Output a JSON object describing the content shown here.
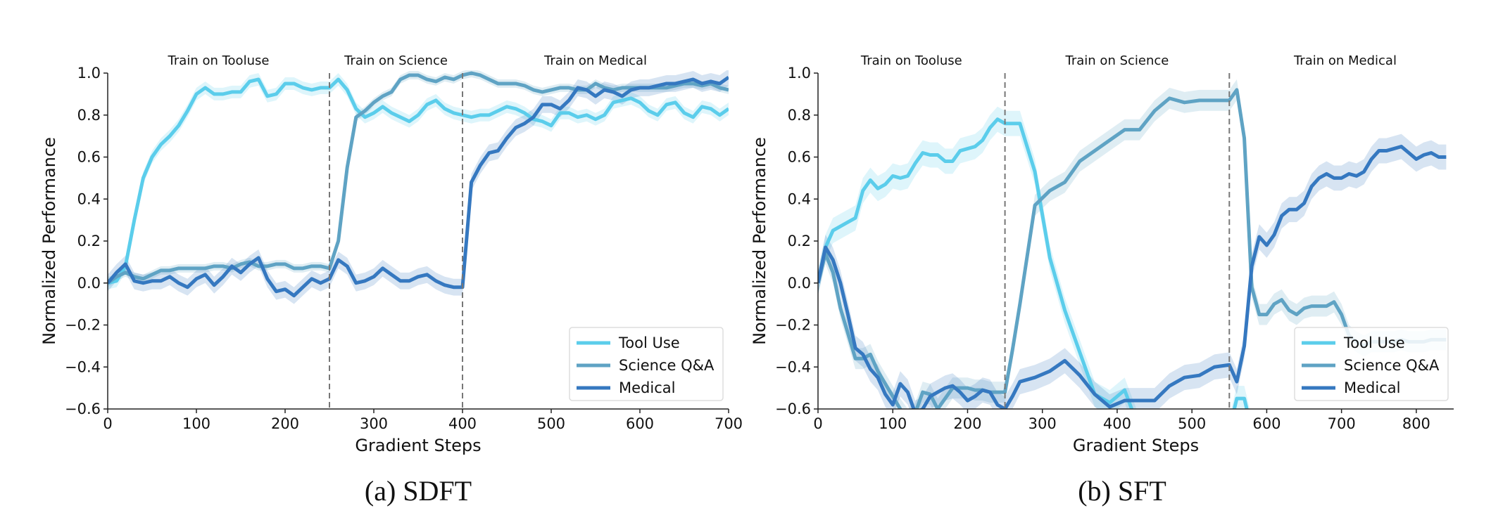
{
  "colors": {
    "tool_use": "#5BCDEB",
    "science": "#5FA3C4",
    "medical": "#3578C0",
    "divider": "#777777"
  },
  "chart_data": [
    {
      "type": "line",
      "caption": "(a) SDFT",
      "xlabel": "Gradient Steps",
      "ylabel": "Normalized Performance",
      "xlim": [
        0,
        700
      ],
      "ylim": [
        -0.6,
        1.0
      ],
      "xticks": [
        0,
        100,
        200,
        300,
        400,
        500,
        600,
        700
      ],
      "yticks": [
        -0.6,
        -0.4,
        -0.2,
        0.0,
        0.2,
        0.4,
        0.6,
        0.8,
        1.0
      ],
      "phase_boundaries": [
        250,
        400
      ],
      "phases": [
        {
          "label": "Train on Tooluse",
          "center": 125
        },
        {
          "label": "Train on Science",
          "center": 325
        },
        {
          "label": "Train on Medical",
          "center": 550
        }
      ],
      "legend": {
        "position": "lower-right",
        "entries": [
          "Tool Use",
          "Science Q&A",
          "Medical"
        ]
      },
      "x": [
        0,
        10,
        20,
        30,
        40,
        50,
        60,
        70,
        80,
        90,
        100,
        110,
        120,
        130,
        140,
        150,
        160,
        170,
        180,
        190,
        200,
        210,
        220,
        230,
        240,
        250,
        260,
        270,
        280,
        290,
        300,
        310,
        320,
        330,
        340,
        350,
        360,
        370,
        380,
        390,
        400,
        410,
        420,
        430,
        440,
        450,
        460,
        470,
        480,
        490,
        500,
        510,
        520,
        530,
        540,
        550,
        560,
        570,
        580,
        590,
        600,
        610,
        620,
        630,
        640,
        650,
        660,
        670,
        680,
        690,
        700
      ],
      "series": [
        {
          "name": "Tool Use",
          "key": "tool_use",
          "band": 0.03,
          "values": [
            0.0,
            0.01,
            0.08,
            0.3,
            0.5,
            0.6,
            0.66,
            0.7,
            0.75,
            0.82,
            0.9,
            0.93,
            0.9,
            0.9,
            0.91,
            0.91,
            0.96,
            0.97,
            0.89,
            0.9,
            0.95,
            0.95,
            0.93,
            0.92,
            0.93,
            0.93,
            0.97,
            0.92,
            0.83,
            0.79,
            0.81,
            0.84,
            0.81,
            0.79,
            0.77,
            0.8,
            0.85,
            0.87,
            0.83,
            0.81,
            0.8,
            0.79,
            0.8,
            0.8,
            0.82,
            0.84,
            0.83,
            0.81,
            0.78,
            0.77,
            0.75,
            0.81,
            0.81,
            0.79,
            0.8,
            0.78,
            0.8,
            0.86,
            0.87,
            0.88,
            0.86,
            0.82,
            0.8,
            0.85,
            0.86,
            0.81,
            0.79,
            0.84,
            0.83,
            0.8,
            0.83
          ]
        },
        {
          "name": "Science Q&A",
          "key": "science",
          "band": 0.02,
          "values": [
            0.0,
            0.03,
            0.05,
            0.03,
            0.02,
            0.04,
            0.06,
            0.06,
            0.07,
            0.07,
            0.07,
            0.07,
            0.08,
            0.08,
            0.07,
            0.09,
            0.1,
            0.08,
            0.08,
            0.09,
            0.09,
            0.07,
            0.07,
            0.08,
            0.08,
            0.07,
            0.2,
            0.55,
            0.79,
            0.82,
            0.86,
            0.89,
            0.91,
            0.97,
            0.99,
            0.99,
            0.97,
            0.96,
            0.98,
            0.97,
            0.99,
            1.0,
            0.99,
            0.97,
            0.95,
            0.95,
            0.95,
            0.94,
            0.92,
            0.91,
            0.92,
            0.93,
            0.93,
            0.92,
            0.92,
            0.95,
            0.93,
            0.92,
            0.93,
            0.93,
            0.93,
            0.93,
            0.93,
            0.93,
            0.94,
            0.95,
            0.95,
            0.94,
            0.95,
            0.93,
            0.92
          ]
        },
        {
          "name": "Medical",
          "key": "medical",
          "band": 0.04,
          "values": [
            0.0,
            0.05,
            0.09,
            0.01,
            0.0,
            0.01,
            0.01,
            0.03,
            0.0,
            -0.02,
            0.02,
            0.04,
            -0.01,
            0.03,
            0.08,
            0.05,
            0.09,
            0.12,
            0.02,
            -0.04,
            -0.03,
            -0.06,
            -0.02,
            0.02,
            0.0,
            0.02,
            0.11,
            0.08,
            0.0,
            0.01,
            0.03,
            0.07,
            0.04,
            0.01,
            0.01,
            0.03,
            0.04,
            0.01,
            -0.01,
            -0.02,
            -0.02,
            0.48,
            0.56,
            0.62,
            0.63,
            0.69,
            0.74,
            0.76,
            0.79,
            0.85,
            0.85,
            0.83,
            0.87,
            0.93,
            0.92,
            0.89,
            0.92,
            0.91,
            0.89,
            0.92,
            0.93,
            0.93,
            0.94,
            0.95,
            0.95,
            0.96,
            0.97,
            0.95,
            0.96,
            0.95,
            0.98
          ]
        }
      ]
    },
    {
      "type": "line",
      "caption": "(b) SFT",
      "xlabel": "Gradient Steps",
      "ylabel": "Normalized Performance",
      "xlim": [
        0,
        850
      ],
      "ylim": [
        -0.6,
        1.0
      ],
      "xticks": [
        0,
        100,
        200,
        300,
        400,
        500,
        600,
        700,
        800
      ],
      "yticks": [
        -0.6,
        -0.4,
        -0.2,
        0.0,
        0.2,
        0.4,
        0.6,
        0.8,
        1.0
      ],
      "phase_boundaries": [
        250,
        550
      ],
      "phases": [
        {
          "label": "Train on Tooluse",
          "center": 125
        },
        {
          "label": "Train on Science",
          "center": 400
        },
        {
          "label": "Train on Medical",
          "center": 705
        }
      ],
      "legend": {
        "position": "lower-right",
        "entries": [
          "Tool Use",
          "Science Q&A",
          "Medical"
        ]
      },
      "x": [
        0,
        10,
        20,
        30,
        40,
        50,
        60,
        70,
        80,
        90,
        100,
        110,
        120,
        130,
        140,
        150,
        160,
        170,
        180,
        190,
        200,
        210,
        220,
        230,
        240,
        250,
        260,
        270,
        290,
        310,
        330,
        350,
        370,
        390,
        410,
        430,
        450,
        470,
        490,
        510,
        530,
        550,
        560,
        570,
        580,
        590,
        600,
        610,
        620,
        630,
        640,
        650,
        660,
        670,
        680,
        690,
        700,
        710,
        720,
        730,
        740,
        750,
        760,
        770,
        780,
        790,
        800,
        810,
        820,
        830,
        840
      ],
      "series": [
        {
          "name": "Tool Use",
          "key": "tool_use",
          "band": 0.06,
          "values": [
            0.0,
            0.17,
            0.25,
            0.27,
            0.29,
            0.31,
            0.44,
            0.49,
            0.45,
            0.47,
            0.51,
            0.5,
            0.51,
            0.57,
            0.62,
            0.61,
            0.61,
            0.58,
            0.58,
            0.63,
            0.64,
            0.65,
            0.68,
            0.74,
            0.78,
            0.76,
            0.76,
            0.76,
            0.53,
            0.12,
            -0.13,
            -0.33,
            -0.53,
            -0.57,
            -0.51,
            -0.7,
            -0.7,
            -0.7,
            -0.7,
            -0.7,
            -0.7,
            -0.7,
            -0.55,
            -0.55,
            -0.7,
            -0.7,
            -0.7,
            -0.7,
            -0.7,
            -0.7,
            -0.7,
            -0.7,
            -0.7,
            -0.7,
            -0.7,
            -0.7,
            -0.7,
            -0.7,
            -0.7,
            -0.7,
            -0.7,
            -0.7,
            -0.7,
            -0.7,
            -0.7,
            -0.7,
            -0.7,
            -0.7,
            -0.7,
            -0.7,
            -0.7
          ]
        },
        {
          "name": "Science Q&A",
          "key": "science",
          "band": 0.05,
          "values": [
            0.0,
            0.14,
            0.05,
            -0.12,
            -0.24,
            -0.36,
            -0.36,
            -0.34,
            -0.42,
            -0.48,
            -0.54,
            -0.6,
            -0.65,
            -0.62,
            -0.52,
            -0.53,
            -0.6,
            -0.55,
            -0.5,
            -0.5,
            -0.5,
            -0.51,
            -0.51,
            -0.52,
            -0.52,
            -0.52,
            -0.32,
            -0.1,
            0.37,
            0.44,
            0.48,
            0.58,
            0.63,
            0.68,
            0.73,
            0.73,
            0.82,
            0.88,
            0.86,
            0.87,
            0.87,
            0.87,
            0.92,
            0.69,
            -0.02,
            -0.15,
            -0.15,
            -0.1,
            -0.08,
            -0.13,
            -0.15,
            -0.12,
            -0.11,
            -0.11,
            -0.11,
            -0.09,
            -0.15,
            -0.25,
            -0.28,
            -0.3,
            -0.28,
            -0.28,
            -0.28,
            -0.28,
            -0.27,
            -0.28,
            -0.28,
            -0.28,
            -0.27,
            -0.27,
            -0.27
          ]
        },
        {
          "name": "Medical",
          "key": "medical",
          "band": 0.06,
          "values": [
            0.0,
            0.17,
            0.11,
            0.0,
            -0.15,
            -0.31,
            -0.34,
            -0.41,
            -0.45,
            -0.53,
            -0.58,
            -0.48,
            -0.52,
            -0.62,
            -0.6,
            -0.54,
            -0.52,
            -0.5,
            -0.49,
            -0.52,
            -0.56,
            -0.54,
            -0.51,
            -0.52,
            -0.58,
            -0.6,
            -0.54,
            -0.47,
            -0.45,
            -0.42,
            -0.37,
            -0.44,
            -0.53,
            -0.59,
            -0.56,
            -0.56,
            -0.56,
            -0.49,
            -0.45,
            -0.44,
            -0.4,
            -0.39,
            -0.47,
            -0.3,
            0.08,
            0.22,
            0.18,
            0.23,
            0.32,
            0.35,
            0.35,
            0.38,
            0.46,
            0.5,
            0.52,
            0.5,
            0.5,
            0.52,
            0.51,
            0.53,
            0.59,
            0.63,
            0.63,
            0.64,
            0.65,
            0.62,
            0.59,
            0.61,
            0.62,
            0.6,
            0.6
          ]
        }
      ]
    }
  ]
}
